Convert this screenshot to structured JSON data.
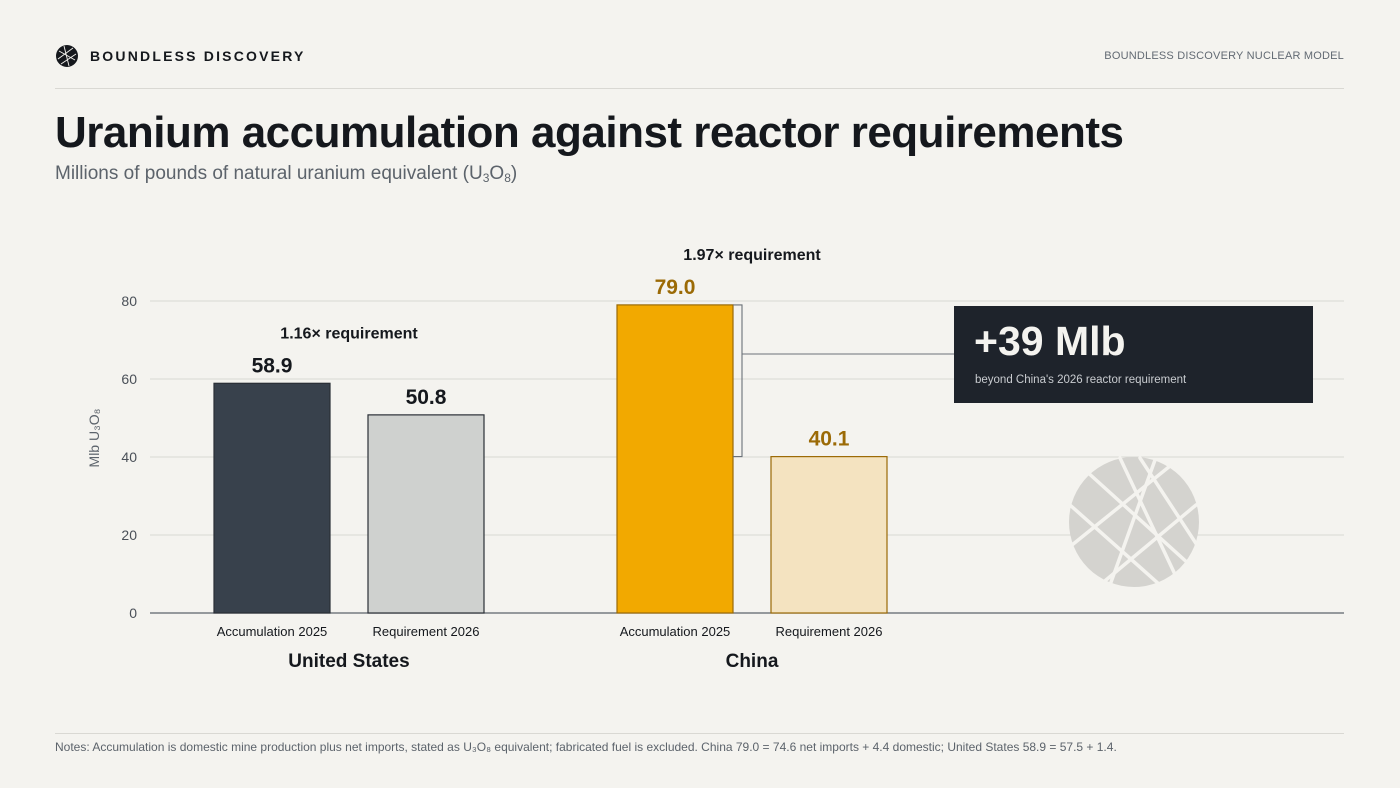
{
  "header": {
    "brand": "BOUNDLESS DISCOVERY",
    "model_label": "BOUNDLESS DISCOVERY NUCLEAR MODEL"
  },
  "title": "Uranium accumulation against reactor requirements",
  "subtitle": {
    "prefix": "Millions of pounds of natural uranium equivalent (U",
    "sub1": "3",
    "mid": "O",
    "sub2": "8",
    "suffix": ")"
  },
  "chart_data": {
    "type": "bar",
    "ylabel": "Mlb U₃O₈",
    "ylim": [
      0,
      80
    ],
    "yticks": [
      0,
      20,
      40,
      60,
      80
    ],
    "grid": true,
    "groups": [
      {
        "name": "United States",
        "multiple_label": "1.16× requirement",
        "bars": [
          {
            "category": "Accumulation 2025",
            "value": 58.9,
            "label": "58.9",
            "fill": "#38414c",
            "label_color": "#15181d"
          },
          {
            "category": "Requirement 2026",
            "value": 50.8,
            "label": "50.8",
            "fill": "#cfd1cf",
            "label_color": "#15181d"
          }
        ]
      },
      {
        "name": "China",
        "multiple_label": "1.97× requirement",
        "bars": [
          {
            "category": "Accumulation 2025",
            "value": 79.0,
            "label": "79.0",
            "fill": "#f2a900",
            "label_color": "#9b6a06"
          },
          {
            "category": "Requirement 2026",
            "value": 40.1,
            "label": "40.1",
            "fill": "#f4e3c0",
            "label_color": "#9b6a06"
          }
        ]
      }
    ],
    "annotation": {
      "headline": "+39 Mlb",
      "detail": "beyond China's 2026 reactor requirement",
      "from": 40.1,
      "to": 79.0
    },
    "colors": {
      "bar_stroke_dark": "#2a2f36",
      "bar_stroke_amber": "#9b6a06",
      "gridline": "#d9d8d3",
      "axis": "#5c636b",
      "callout_bg": "#1e232b"
    }
  },
  "footer": {
    "notes": "Notes: Accumulation is domestic mine production plus net imports, stated as U₃O₈ equivalent; fabricated fuel is excluded.  China 79.0 = 74.6 net imports + 4.4 domestic; United States 58.9 = 57.5 + 1.4."
  }
}
